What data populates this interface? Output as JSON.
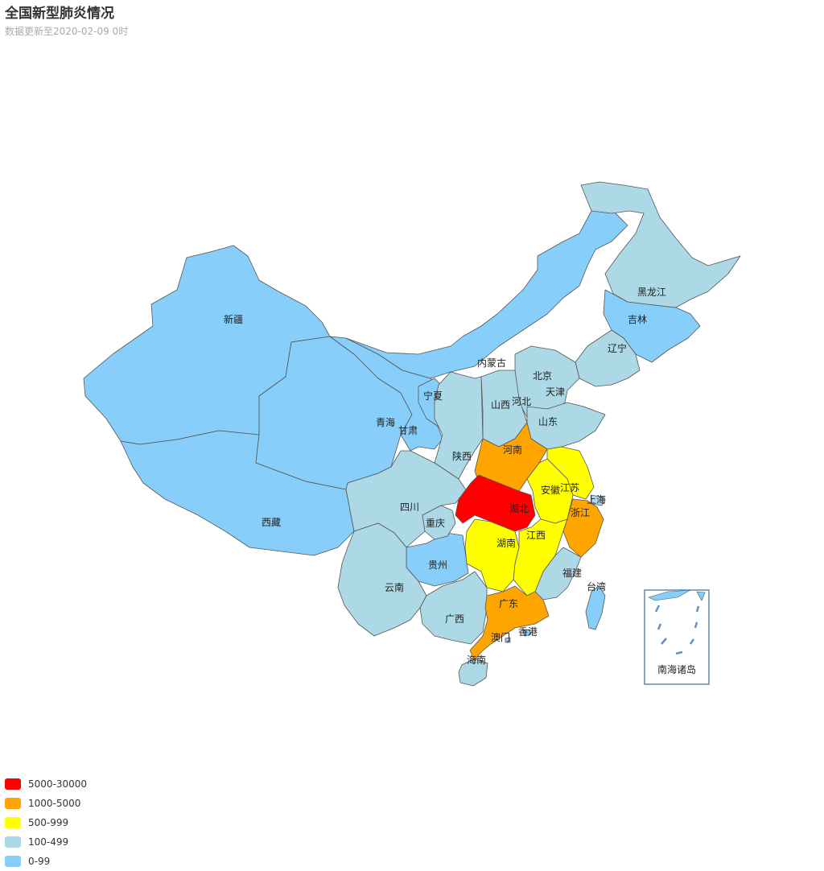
{
  "title": "全国新型肺炎情况",
  "subtitle": "数据更新至2020-02-09 0时",
  "colors": {
    "border": "#555555",
    "label": "#222222"
  },
  "legend": [
    {
      "label": "5000-30000",
      "color": "#ff0000"
    },
    {
      "label": "1000-5000",
      "color": "#ffa500"
    },
    {
      "label": "500-999",
      "color": "#ffff00"
    },
    {
      "label": "100-499",
      "color": "#add8e6"
    },
    {
      "label": "0-99",
      "color": "#87cefa"
    }
  ],
  "provinces": [
    {
      "id": "xinjiang",
      "name": "新疆",
      "category": "0-99"
    },
    {
      "id": "xizang",
      "name": "西藏",
      "category": "0-99"
    },
    {
      "id": "qinghai",
      "name": "青海",
      "category": "0-99"
    },
    {
      "id": "gansu",
      "name": "甘肃",
      "category": "0-99"
    },
    {
      "id": "neimenggu",
      "name": "内蒙古",
      "category": "0-99"
    },
    {
      "id": "ningxia",
      "name": "宁夏",
      "category": "0-99"
    },
    {
      "id": "jilin",
      "name": "吉林",
      "category": "0-99"
    },
    {
      "id": "guizhou",
      "name": "贵州",
      "category": "0-99"
    },
    {
      "id": "tianjin",
      "name": "天津",
      "category": "0-99"
    },
    {
      "id": "heilongjiang",
      "name": "黑龙江",
      "category": "100-499"
    },
    {
      "id": "liaoning",
      "name": "辽宁",
      "category": "100-499"
    },
    {
      "id": "beijing",
      "name": "北京",
      "category": "100-499"
    },
    {
      "id": "hebei",
      "name": "河北",
      "category": "100-499"
    },
    {
      "id": "shanxi",
      "name": "山西",
      "category": "100-499"
    },
    {
      "id": "shandong",
      "name": "山东",
      "category": "100-499"
    },
    {
      "id": "shaanxi",
      "name": "陕西",
      "category": "100-499"
    },
    {
      "id": "sichuan",
      "name": "四川",
      "category": "100-499"
    },
    {
      "id": "chongqing",
      "name": "重庆",
      "category": "100-499"
    },
    {
      "id": "yunnan",
      "name": "云南",
      "category": "100-499"
    },
    {
      "id": "guangxi",
      "name": "广西",
      "category": "100-499"
    },
    {
      "id": "hainan",
      "name": "海南",
      "category": "100-499"
    },
    {
      "id": "fujian",
      "name": "福建",
      "category": "100-499"
    },
    {
      "id": "shanghai",
      "name": "上海",
      "category": "100-499"
    },
    {
      "id": "taiwan",
      "name": "台湾",
      "category": "0-99"
    },
    {
      "id": "xianggang",
      "name": "香港",
      "category": "0-99"
    },
    {
      "id": "aomen",
      "name": "澳门",
      "category": "0-99"
    },
    {
      "id": "jiangsu",
      "name": "江苏",
      "category": "500-999"
    },
    {
      "id": "anhui",
      "name": "安徽",
      "category": "500-999"
    },
    {
      "id": "jiangxi",
      "name": "江西",
      "category": "500-999"
    },
    {
      "id": "hunan",
      "name": "湖南",
      "category": "500-999"
    },
    {
      "id": "henan",
      "name": "河南",
      "category": "1000-5000"
    },
    {
      "id": "zhejiang",
      "name": "浙江",
      "category": "1000-5000"
    },
    {
      "id": "guangdong",
      "name": "广东",
      "category": "1000-5000"
    },
    {
      "id": "hubei",
      "name": "湖北",
      "category": "5000-30000"
    }
  ],
  "inset": {
    "label": "南海诸岛"
  }
}
